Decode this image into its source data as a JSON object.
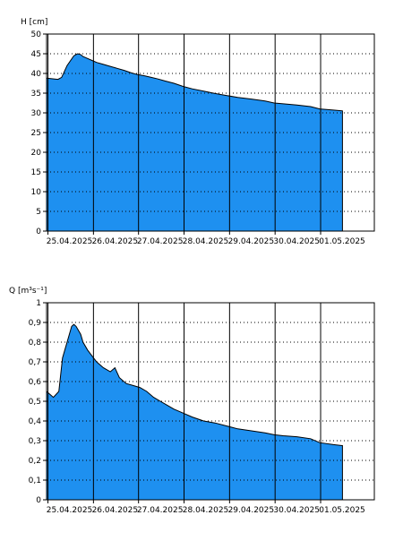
{
  "chart_data": [
    {
      "type": "area",
      "ylabel": "H [cm]",
      "ylim": [
        0,
        50
      ],
      "yticks": [
        0,
        5,
        10,
        15,
        20,
        25,
        30,
        35,
        40,
        45,
        50
      ],
      "ytick_labels": [
        "0",
        "5",
        "10",
        "15",
        "20",
        "25",
        "30",
        "35",
        "40",
        "45",
        "50"
      ],
      "xlim": [
        0,
        7.2
      ],
      "xticks": [
        0.03,
        1.03,
        2.02,
        3.02,
        4.02,
        5.02,
        6.02
      ],
      "xtick_labels": [
        "25.04.2025",
        "26.04.2025",
        "27.04.2025",
        "28.04.2025",
        "29.04.2025",
        "30.04.2025",
        "01.05.2025"
      ],
      "x_unit": "days after 25.04.2025 00:00",
      "grid": "horizontal dotted, vertical solid at day ticks",
      "fill_color": "#1e90f0",
      "series": [
        {
          "x": [
            0.0,
            0.25,
            0.33,
            0.45,
            0.6,
            0.68,
            0.75,
            0.8,
            0.9,
            1.0,
            1.1,
            1.25,
            1.4,
            1.55,
            1.7,
            1.85,
            2.0,
            2.15,
            2.3,
            2.45,
            2.6,
            2.8,
            3.0,
            3.2,
            3.45,
            3.7,
            3.95,
            4.2,
            4.5,
            4.8,
            5.0,
            5.2,
            5.5,
            5.8,
            6.0,
            6.3,
            6.5
          ],
          "y": [
            38.8,
            38.5,
            39.0,
            42.0,
            44.5,
            45.0,
            44.8,
            44.3,
            43.8,
            43.3,
            42.8,
            42.3,
            41.8,
            41.3,
            40.8,
            40.2,
            39.7,
            39.4,
            39.0,
            38.6,
            38.1,
            37.5,
            36.7,
            36.1,
            35.5,
            34.9,
            34.4,
            33.9,
            33.5,
            33.0,
            32.5,
            32.3,
            32.0,
            31.6,
            31.0,
            30.7,
            30.5
          ]
        }
      ]
    },
    {
      "type": "area",
      "ylabel": "Q [m³s⁻¹]",
      "ylim": [
        0,
        1
      ],
      "yticks": [
        0,
        0.1,
        0.2,
        0.3,
        0.4,
        0.5,
        0.6,
        0.7,
        0.8,
        0.9,
        1
      ],
      "ytick_labels": [
        "0",
        "0,1",
        "0,2",
        "0,3",
        "0,4",
        "0,5",
        "0,6",
        "0,7",
        "0,8",
        "0,9",
        "1"
      ],
      "xlim": [
        0,
        7.2
      ],
      "xticks": [
        0.03,
        1.03,
        2.02,
        3.02,
        4.02,
        5.02,
        6.02
      ],
      "xtick_labels": [
        "25.04.2025",
        "26.04.2025",
        "27.04.2025",
        "28.04.2025",
        "29.04.2025",
        "30.04.2025",
        "01.05.2025"
      ],
      "x_unit": "days after 25.04.2025 00:00",
      "grid": "horizontal dotted, vertical solid at day ticks",
      "fill_color": "#1e90f0",
      "series": [
        {
          "x": [
            0.0,
            0.15,
            0.27,
            0.35,
            0.45,
            0.55,
            0.6,
            0.65,
            0.75,
            0.8,
            0.9,
            1.0,
            1.1,
            1.25,
            1.4,
            1.5,
            1.6,
            1.75,
            1.9,
            2.05,
            2.2,
            2.35,
            2.5,
            2.65,
            2.8,
            3.0,
            3.2,
            3.45,
            3.7,
            3.95,
            4.2,
            4.5,
            4.8,
            5.0,
            5.2,
            5.5,
            5.8,
            6.0,
            6.3,
            6.5
          ],
          "y": [
            0.55,
            0.52,
            0.55,
            0.72,
            0.8,
            0.88,
            0.89,
            0.88,
            0.84,
            0.8,
            0.76,
            0.73,
            0.7,
            0.67,
            0.65,
            0.67,
            0.62,
            0.59,
            0.58,
            0.57,
            0.55,
            0.52,
            0.5,
            0.48,
            0.46,
            0.44,
            0.42,
            0.4,
            0.39,
            0.375,
            0.36,
            0.35,
            0.34,
            0.33,
            0.325,
            0.32,
            0.31,
            0.29,
            0.28,
            0.275
          ]
        }
      ]
    }
  ]
}
